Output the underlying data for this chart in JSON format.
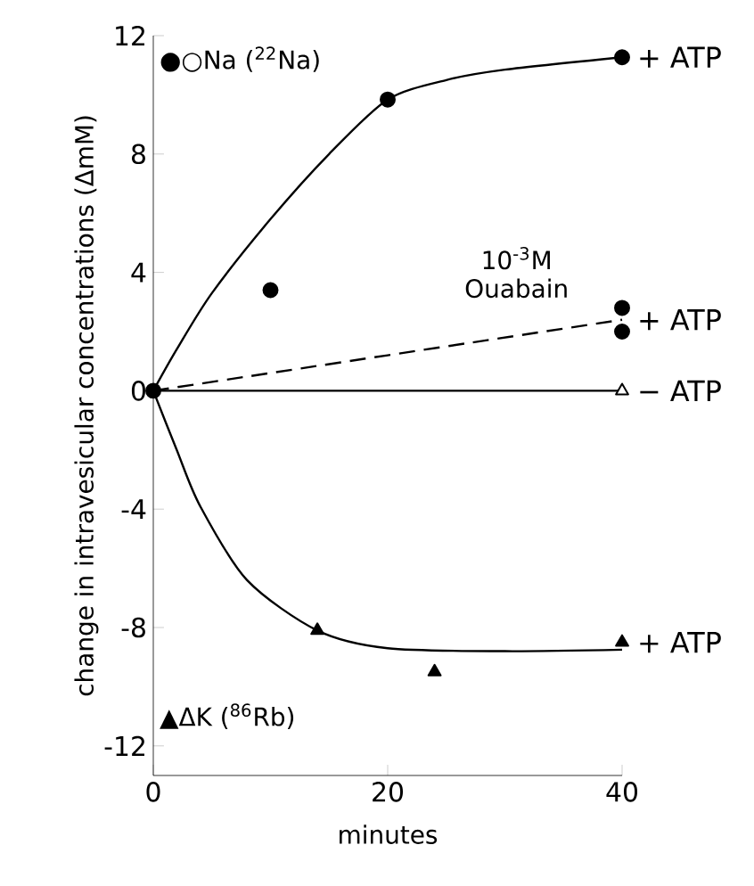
{
  "chart_data": {
    "type": "scatter",
    "xlabel": "minutes",
    "ylabel": "change in intravesicular concentrations (ΔmM)",
    "xlim": [
      0,
      40
    ],
    "ylim": [
      -13,
      12
    ],
    "xticks": [
      0,
      20,
      40
    ],
    "yticks": [
      -12,
      -8,
      -4,
      0,
      4,
      8,
      12
    ],
    "grid": false,
    "series": [
      {
        "type": "line",
        "color": "#000000",
        "line_style": "solid",
        "marker": "none",
        "x": [
          0,
          2,
          5,
          10,
          15,
          20,
          25,
          30,
          40
        ],
        "values": [
          0,
          1.4,
          3.3,
          5.8,
          8.0,
          9.84,
          10.5,
          10.85,
          11.27
        ]
      },
      {
        "name": "+ ATP",
        "color": "#000000",
        "marker": "circle",
        "x": [
          0,
          10,
          20,
          40
        ],
        "values": [
          0,
          3.4,
          9.84,
          11.27
        ]
      },
      {
        "name": "+ ATP",
        "type": "line",
        "color": "#000000",
        "line_style": "dashed",
        "marker": "none",
        "x": [
          0,
          40
        ],
        "values": [
          0,
          2.4
        ]
      },
      {
        "color": "#000000",
        "marker": "circle",
        "x": [
          40,
          40
        ],
        "values": [
          2.8,
          2.0
        ]
      },
      {
        "name": "− ATP",
        "type": "line",
        "color": "#000000",
        "line_style": "solid",
        "marker": "none",
        "x": [
          0,
          40
        ],
        "values": [
          0,
          0
        ]
      },
      {
        "color": "#ffffff",
        "marker": "triangle",
        "x": [
          40
        ],
        "values": [
          0
        ]
      },
      {
        "type": "line",
        "color": "#000000",
        "line_style": "solid",
        "marker": "none",
        "x": [
          0,
          2,
          4,
          8,
          14,
          20,
          30,
          40
        ],
        "values": [
          0,
          -2,
          -3.9,
          -6.4,
          -8.1,
          -8.7,
          -8.8,
          -8.75
        ]
      },
      {
        "name": "+ ATP",
        "color": "#000000",
        "marker": "triangle",
        "x": [
          14,
          24,
          40
        ],
        "values": [
          -8.1,
          -9.5,
          -8.5
        ]
      }
    ],
    "annotations": [
      "●○Na ($^{22}$Na)",
      "▲ΔK ($^{86}$Rb)",
      "10$^{-3}$M Ouabain"
    ]
  }
}
